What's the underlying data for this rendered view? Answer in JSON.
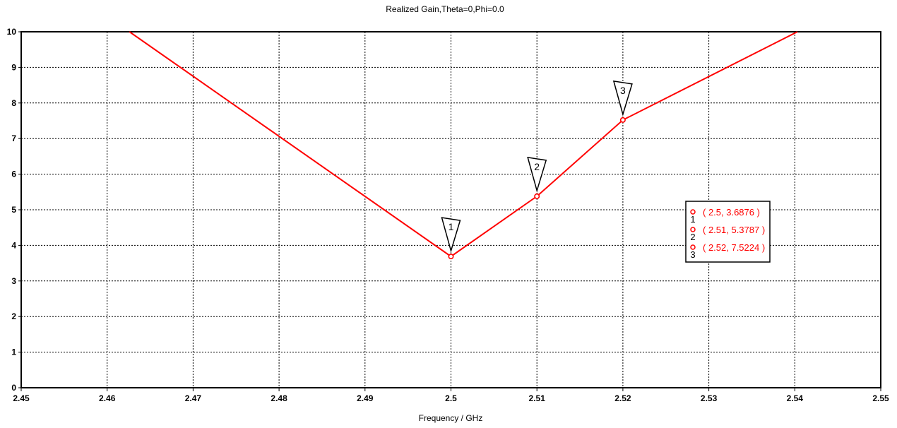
{
  "chart_data": {
    "type": "line",
    "title": "Realized Gain,Theta=0,Phi=0.0",
    "xlabel": "Frequency / GHz",
    "ylabel": "",
    "xlim": [
      2.45,
      2.55
    ],
    "ylim": [
      0,
      10
    ],
    "x_ticks": [
      "2.45",
      "2.46",
      "2.47",
      "2.48",
      "2.49",
      "2.5",
      "2.51",
      "2.52",
      "2.53",
      "2.54",
      "2.55"
    ],
    "y_ticks": [
      "0",
      "1",
      "2",
      "3",
      "4",
      "5",
      "6",
      "7",
      "8",
      "9",
      "10"
    ],
    "grid": true,
    "series": [
      {
        "color": "#ff0000",
        "x": [
          2.4626,
          2.5,
          2.51,
          2.52,
          2.5403
        ],
        "y": [
          10.0,
          3.6876,
          5.3787,
          7.5224,
          10.0
        ]
      }
    ],
    "markers": [
      {
        "label": "1",
        "x": 2.5,
        "y": 3.6876
      },
      {
        "label": "2",
        "x": 2.51,
        "y": 5.3787
      },
      {
        "label": "3",
        "x": 2.52,
        "y": 7.5224
      }
    ],
    "legend_entries": [
      {
        "label": "1",
        "text": "( 2.5, 3.6876 )"
      },
      {
        "label": "2",
        "text": "( 2.51, 5.3787 )"
      },
      {
        "label": "3",
        "text": "( 2.52, 7.5224 )"
      }
    ],
    "legend_position": "right"
  }
}
